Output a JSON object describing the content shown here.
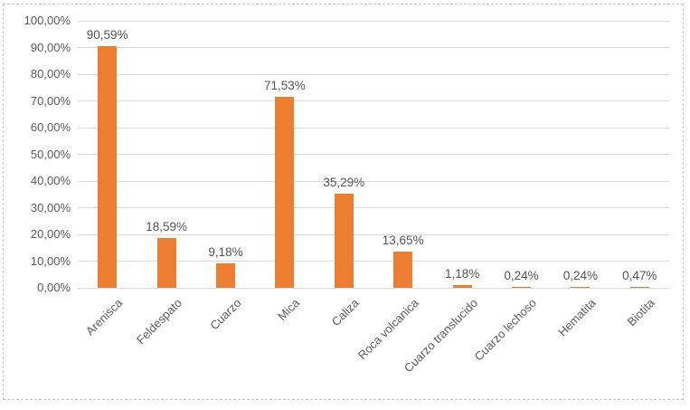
{
  "chart_data": {
    "type": "bar",
    "title": "",
    "xlabel": "",
    "ylabel": "",
    "categories": [
      "Arenisca",
      "Feldespato",
      "Cuarzo",
      "Mica",
      "Caliza",
      "Roca volcanica",
      "Cuarzo translucido",
      "Cuarzo lechoso",
      "Hematita",
      "Biotita"
    ],
    "values": [
      90.59,
      18.59,
      9.18,
      71.53,
      35.29,
      13.65,
      1.18,
      0.24,
      0.24,
      0.47
    ],
    "data_labels": [
      "90,59%",
      "18,59%",
      "9,18%",
      "71,53%",
      "35,29%",
      "13,65%",
      "1,18%",
      "0,24%",
      "0,24%",
      "0,47%"
    ],
    "y_tick_labels": [
      "0,00%",
      "10,00%",
      "20,00%",
      "30,00%",
      "40,00%",
      "50,00%",
      "60,00%",
      "70,00%",
      "80,00%",
      "90,00%",
      "100,00%"
    ],
    "ylim": [
      0,
      100
    ],
    "y_step": 10,
    "grid": true,
    "legend_position": "none",
    "bar_color": "#ED7D31",
    "gridline_color": "#D9D9D9",
    "axis_label_color": "#595959",
    "data_label_color": "#545454",
    "chart_border_color": "#C9C9C9",
    "background_color": "#FFFFFF"
  }
}
